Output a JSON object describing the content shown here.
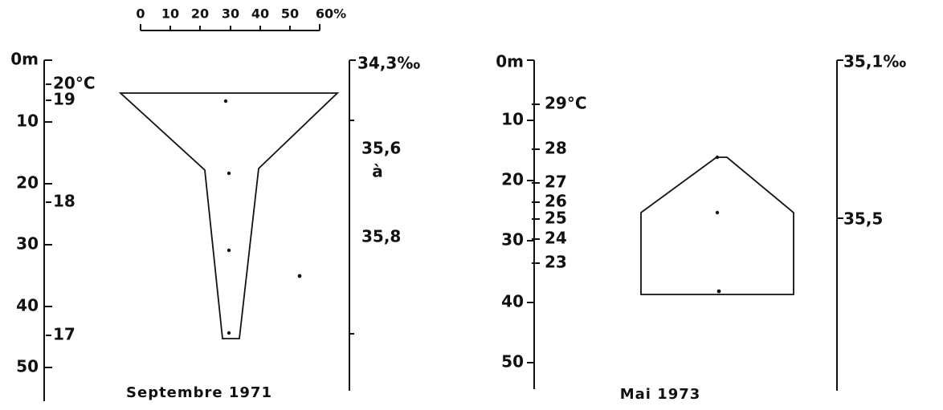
{
  "scale": {
    "labels": [
      "0",
      "10",
      "20",
      "30",
      "40",
      "50",
      "60%"
    ]
  },
  "panels": [
    {
      "depth_labels": [
        "0m",
        "10",
        "20",
        "30",
        "40",
        "50"
      ],
      "temperature_labels": [
        "20°C",
        "19",
        "18",
        "17"
      ],
      "salinity_labels": [
        "34,3‰",
        "35,6",
        "à",
        "35,8"
      ],
      "caption": "Septembre 1971"
    },
    {
      "depth_labels": [
        "0m",
        "10",
        "20",
        "30",
        "40",
        "50"
      ],
      "temperature_labels": [
        "29°C",
        "28",
        "27",
        "26",
        "25",
        "24",
        "23"
      ],
      "salinity_labels": [
        "35,1‰",
        "35,5"
      ],
      "caption": "Mai 1973"
    }
  ]
}
